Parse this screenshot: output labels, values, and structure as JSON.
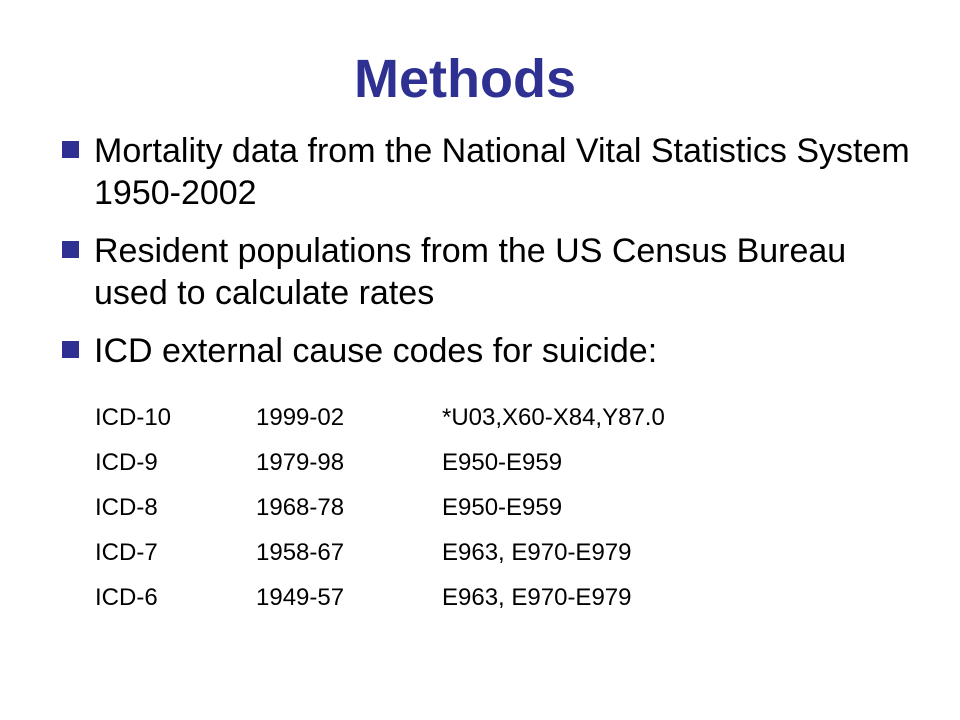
{
  "slide": {
    "title": "Methods",
    "bullets": [
      {
        "text": "Mortality data from the National Vital Statistics System 1950-2002"
      },
      {
        "text": "Resident populations from the US Census Bureau used to calculate rates"
      },
      {
        "text": "ICD external cause codes for suicide:"
      }
    ],
    "codes": [
      {
        "revision": "ICD-10",
        "years": "1999-02",
        "codes": "*U03,X60-X84,Y87.0"
      },
      {
        "revision": "ICD-9",
        "years": "1979-98",
        "codes": "E950-E959"
      },
      {
        "revision": "ICD-8",
        "years": "1968-78",
        "codes": "E950-E959"
      },
      {
        "revision": "ICD-7",
        "years": "1958-67",
        "codes": "E963, E970-E979"
      },
      {
        "revision": "ICD-6",
        "years": "1949-57",
        "codes": "E963, E970-E979"
      }
    ],
    "colors": {
      "title": "#2e3192",
      "bullet_marker": "#2e3192",
      "text": "#000000",
      "background": "#ffffff"
    }
  }
}
